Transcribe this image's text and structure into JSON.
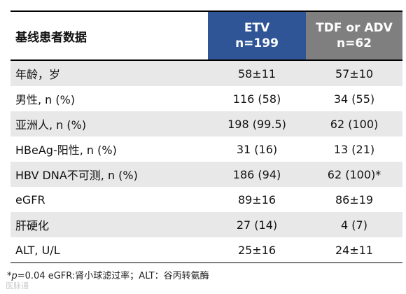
{
  "header": {
    "title": "基线患者数据",
    "columns": [
      {
        "name": "ETV",
        "n": "n=199"
      },
      {
        "name": "TDF or ADV",
        "n": "n=62"
      }
    ]
  },
  "table": {
    "rows": [
      [
        "年龄，岁",
        "58±11",
        "57±10"
      ],
      [
        "男性, n (%)",
        "116 (58)",
        "34 (55)"
      ],
      [
        "亚洲人, n (%)",
        "198 (99.5)",
        "62 (100)"
      ],
      [
        "HBeAg-阳性, n (%)",
        "31 (16)",
        "13 (21)"
      ],
      [
        "HBV DNA不可测, n (%)",
        "186 (94)",
        "62 (100)*"
      ],
      [
        "eGFR",
        "89±16",
        "86±19"
      ],
      [
        "肝硬化",
        "27 (14)",
        "4 (7)"
      ],
      [
        "ALT, U/L",
        "25±16",
        "24±11"
      ]
    ]
  },
  "footnote": {
    "marker": "*",
    "p_label": "p",
    "text": "=0.04 eGFR:肾小球滤过率；ALT：谷丙转氨酶"
  },
  "watermark": "医脉通"
}
